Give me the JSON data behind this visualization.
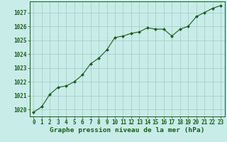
{
  "x_values": [
    0,
    1,
    2,
    3,
    4,
    5,
    6,
    7,
    8,
    9,
    10,
    11,
    12,
    13,
    14,
    15,
    16,
    17,
    18,
    19,
    20,
    21,
    22,
    23
  ],
  "y_values": [
    1019.8,
    1020.2,
    1021.1,
    1021.6,
    1021.7,
    1022.0,
    1022.5,
    1023.3,
    1023.7,
    1024.3,
    1025.2,
    1025.3,
    1025.5,
    1025.6,
    1025.9,
    1025.8,
    1025.8,
    1025.3,
    1025.8,
    1026.0,
    1026.7,
    1027.0,
    1027.3,
    1027.5
  ],
  "line_color": "#1a5c1a",
  "marker_color": "#1a5c1a",
  "bg_color": "#c8ece8",
  "grid_color": "#aacec8",
  "xlabel": "Graphe pression niveau de la mer (hPa)",
  "xlabel_color": "#1a5c1a",
  "tick_color": "#1a5c1a",
  "axis_color": "#1a5c1a",
  "ylim": [
    1019.5,
    1027.8
  ],
  "yticks": [
    1020,
    1021,
    1022,
    1023,
    1024,
    1025,
    1026,
    1027
  ],
  "xlim": [
    -0.5,
    23.5
  ],
  "tick_fontsize": 5.5,
  "xlabel_fontsize": 6.8
}
